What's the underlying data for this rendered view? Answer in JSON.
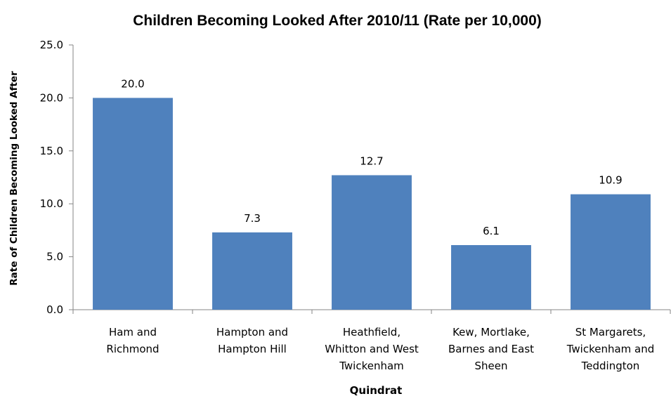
{
  "chart_data": {
    "type": "bar",
    "title": "Children Becoming Looked After 2010/11 (Rate per 10,000)",
    "xlabel": "Quindrat",
    "ylabel": "Rate of Children Becoming Looked After",
    "categories": [
      [
        "Ham and",
        "Richmond"
      ],
      [
        "Hampton and",
        "Hampton Hill"
      ],
      [
        "Heathfield,",
        "Whitton and West",
        "Twickenham"
      ],
      [
        "Kew, Mortlake,",
        "Barnes and East",
        "Sheen"
      ],
      [
        "St Margarets,",
        "Twickenham and",
        "Teddington"
      ]
    ],
    "values": [
      20.0,
      7.3,
      12.7,
      6.1,
      10.9
    ],
    "data_labels": [
      "20.0",
      "7.3",
      "12.7",
      "6.1",
      "10.9"
    ],
    "ylim": [
      0,
      25
    ],
    "yticks": [
      "0.0",
      "5.0",
      "10.0",
      "15.0",
      "20.0",
      "25.0"
    ],
    "grid": false,
    "legend": "none",
    "bar_color": "#4F81BD"
  }
}
